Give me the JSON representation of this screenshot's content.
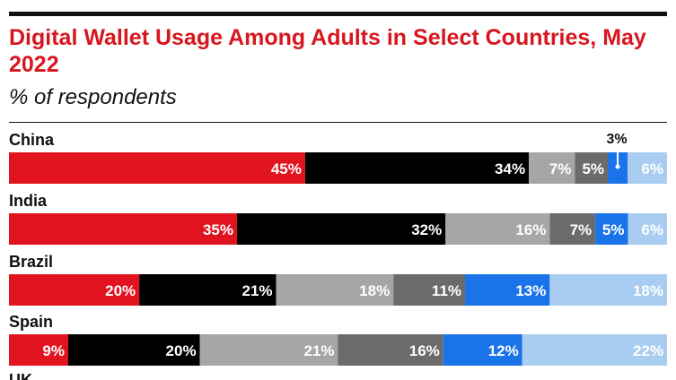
{
  "chart_data": {
    "type": "bar",
    "orientation": "horizontal-stacked-100",
    "title": "Digital Wallet Usage Among Adults in Select Countries, May 2022",
    "subtitle": "% of respondents",
    "categories": [
      "China",
      "India",
      "Brazil",
      "Spain",
      "UK"
    ],
    "series": [
      {
        "values": [
          45,
          35,
          20,
          9,
          null
        ],
        "color": "#e1131f",
        "label_color": "#ffffff"
      },
      {
        "values": [
          34,
          32,
          21,
          20,
          null
        ],
        "color": "#000000",
        "label_color": "#ffffff"
      },
      {
        "values": [
          7,
          16,
          18,
          21,
          null
        ],
        "color": "#a6a6a6",
        "label_color": "#ffffff"
      },
      {
        "values": [
          5,
          7,
          11,
          16,
          null
        ],
        "color": "#6b6b6b",
        "label_color": "#ffffff"
      },
      {
        "values": [
          3,
          5,
          13,
          12,
          null
        ],
        "color": "#1a73e8",
        "label_color": "#ffffff"
      },
      {
        "values": [
          6,
          6,
          18,
          22,
          null
        ],
        "color": "#a9cdf1",
        "label_color": "#ffffff"
      }
    ],
    "xlim": [
      0,
      100
    ],
    "grid": false,
    "legend": "none"
  },
  "colors": {
    "title": "#d7161f",
    "text": "#111111"
  }
}
